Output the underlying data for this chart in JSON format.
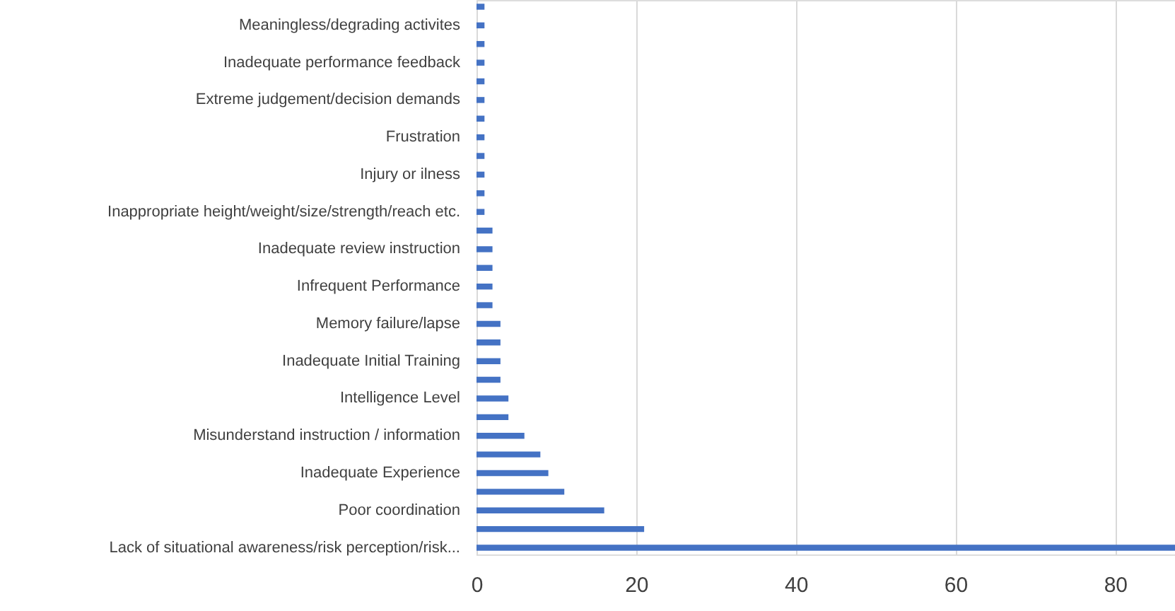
{
  "chart_data": {
    "type": "bar",
    "orientation": "horizontal",
    "categories": [
      null,
      "Meaningless/degrading activites",
      null,
      "Inadequate performance feedback",
      null,
      "Extreme judgement/decision demands",
      null,
      "Frustration",
      null,
      "Injury or ilness",
      null,
      "Inappropriate height/weight/size/strength/reach etc.",
      null,
      "Inadequate review instruction",
      null,
      "Infrequent Performance",
      null,
      "Memory failure/lapse",
      null,
      "Inadequate Initial Training",
      null,
      "Intelligence Level",
      null,
      "Misunderstand instruction / information",
      null,
      "Inadequate Experience",
      null,
      "Poor coordination",
      null,
      "Lack of situational awareness/risk perception/risk..."
    ],
    "values": [
      1,
      1,
      1,
      1,
      1,
      1,
      1,
      1,
      1,
      1,
      1,
      1,
      2,
      2,
      2,
      2,
      2,
      3,
      3,
      3,
      3,
      4,
      4,
      6,
      8,
      9,
      11,
      16,
      21,
      87.5
    ],
    "color": "#4472c4",
    "xlim": [
      0,
      87.5
    ],
    "xticks": [
      0,
      20,
      40,
      60,
      80
    ],
    "grid": "x"
  }
}
